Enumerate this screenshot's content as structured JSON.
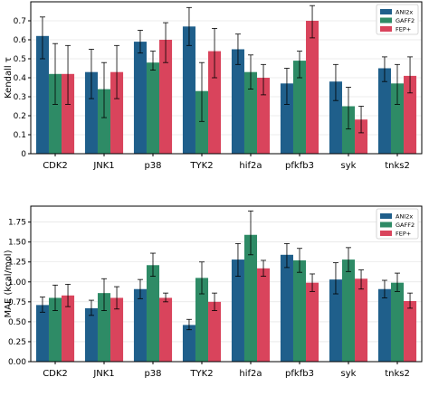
{
  "chart_data": [
    {
      "type": "bar",
      "ylabel": "Kendall τ",
      "ylim": [
        0,
        0.8
      ],
      "yticks": [
        "0",
        "0.1",
        "0.2",
        "0.3",
        "0.4",
        "0.5",
        "0.6",
        "0.7"
      ],
      "grid": true,
      "legend_position": "top-right",
      "categories": [
        "CDK2",
        "JNK1",
        "p38",
        "TYK2",
        "hif2a",
        "pfkfb3",
        "syk",
        "tnks2"
      ],
      "series": [
        {
          "name": "ANI2x",
          "color": "#1f5f8b",
          "values": [
            0.62,
            0.43,
            0.59,
            0.67,
            0.55,
            0.37,
            0.38,
            0.45
          ],
          "error": [
            [
              0.5,
              0.72
            ],
            [
              0.29,
              0.55
            ],
            [
              0.53,
              0.65
            ],
            [
              0.57,
              0.77
            ],
            [
              0.47,
              0.63
            ],
            [
              0.26,
              0.45
            ],
            [
              0.28,
              0.47
            ],
            [
              0.38,
              0.51
            ]
          ]
        },
        {
          "name": "GAFF2",
          "color": "#2e8b66",
          "values": [
            0.42,
            0.34,
            0.48,
            0.33,
            0.43,
            0.49,
            0.25,
            0.37
          ],
          "error": [
            [
              0.26,
              0.58
            ],
            [
              0.19,
              0.48
            ],
            [
              0.44,
              0.54
            ],
            [
              0.17,
              0.48
            ],
            [
              0.34,
              0.52
            ],
            [
              0.4,
              0.54
            ],
            [
              0.13,
              0.35
            ],
            [
              0.26,
              0.47
            ]
          ]
        },
        {
          "name": "FEP+",
          "color": "#d9445c",
          "values": [
            0.42,
            0.43,
            0.6,
            0.54,
            0.4,
            0.7,
            0.18,
            0.41
          ],
          "error": [
            [
              0.26,
              0.57
            ],
            [
              0.29,
              0.57
            ],
            [
              0.48,
              0.69
            ],
            [
              0.4,
              0.66
            ],
            [
              0.31,
              0.47
            ],
            [
              0.61,
              0.78
            ],
            [
              0.11,
              0.25
            ],
            [
              0.32,
              0.51
            ]
          ]
        }
      ]
    },
    {
      "type": "bar",
      "ylabel": "MAE (kcal/mol)",
      "ylim": [
        0,
        1.95
      ],
      "yticks": [
        "0.00",
        "0.25",
        "0.50",
        "0.75",
        "1.00",
        "1.25",
        "1.50",
        "1.75"
      ],
      "grid": true,
      "legend_position": "top-right",
      "categories": [
        "CDK2",
        "JNK1",
        "p38",
        "TYK2",
        "hif2a",
        "pfkfb3",
        "syk",
        "tnks2"
      ],
      "series": [
        {
          "name": "ANI2x",
          "color": "#1f5f8b",
          "values": [
            0.71,
            0.67,
            0.91,
            0.46,
            1.28,
            1.34,
            1.03,
            0.91
          ],
          "error": [
            [
              0.62,
              0.81
            ],
            [
              0.58,
              0.77
            ],
            [
              0.79,
              1.03
            ],
            [
              0.4,
              0.53
            ],
            [
              1.07,
              1.48
            ],
            [
              1.18,
              1.48
            ],
            [
              0.85,
              1.24
            ],
            [
              0.8,
              1.02
            ]
          ]
        },
        {
          "name": "GAFF2",
          "color": "#2e8b66",
          "values": [
            0.8,
            0.86,
            1.21,
            1.05,
            1.59,
            1.27,
            1.28,
            0.99
          ],
          "error": [
            [
              0.64,
              0.96
            ],
            [
              0.64,
              1.04
            ],
            [
              1.07,
              1.36
            ],
            [
              0.85,
              1.25
            ],
            [
              1.34,
              1.89
            ],
            [
              1.12,
              1.42
            ],
            [
              1.13,
              1.43
            ],
            [
              0.88,
              1.11
            ]
          ]
        },
        {
          "name": "FEP+",
          "color": "#d9445c",
          "values": [
            0.83,
            0.8,
            0.8,
            0.75,
            1.17,
            0.99,
            1.04,
            0.76
          ],
          "error": [
            [
              0.69,
              0.97
            ],
            [
              0.66,
              0.94
            ],
            [
              0.75,
              0.86
            ],
            [
              0.64,
              0.86
            ],
            [
              1.07,
              1.27
            ],
            [
              0.88,
              1.1
            ],
            [
              0.91,
              1.15
            ],
            [
              0.67,
              0.86
            ]
          ]
        }
      ]
    }
  ]
}
